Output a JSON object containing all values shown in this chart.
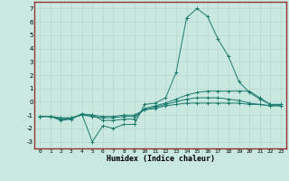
{
  "xlabel": "Humidex (Indice chaleur)",
  "xlim": [
    -0.5,
    23.5
  ],
  "ylim": [
    -3.5,
    7.5
  ],
  "xticks": [
    0,
    1,
    2,
    3,
    4,
    5,
    6,
    7,
    8,
    9,
    10,
    11,
    12,
    13,
    14,
    15,
    16,
    17,
    18,
    19,
    20,
    21,
    22,
    23
  ],
  "yticks": [
    -3,
    -2,
    -1,
    0,
    1,
    2,
    3,
    4,
    5,
    6,
    7
  ],
  "bg_color": "#c8e8e0",
  "grid_color": "#b8d8d0",
  "spine_color": "#993333",
  "line_color": "#1a7a6e",
  "lines": [
    {
      "x": [
        0,
        1,
        2,
        3,
        4,
        5,
        6,
        7,
        8,
        9,
        10,
        11,
        12,
        13,
        14,
        15,
        16,
        17,
        18,
        19,
        20,
        21,
        22,
        23
      ],
      "y": [
        -1.1,
        -1.1,
        -1.4,
        -1.3,
        -0.9,
        -3.0,
        -1.8,
        -2.0,
        -1.7,
        -1.7,
        -0.2,
        -0.1,
        0.3,
        2.2,
        6.3,
        7.0,
        6.4,
        4.7,
        3.4,
        1.5,
        0.7,
        0.2,
        -0.2,
        -0.2
      ]
    },
    {
      "x": [
        0,
        1,
        2,
        3,
        4,
        5,
        6,
        7,
        8,
        9,
        10,
        11,
        12,
        13,
        14,
        15,
        16,
        17,
        18,
        19,
        20,
        21,
        22,
        23
      ],
      "y": [
        -1.1,
        -1.1,
        -1.3,
        -1.3,
        -0.9,
        -1.0,
        -1.4,
        -1.4,
        -1.3,
        -1.3,
        -0.5,
        -0.3,
        -0.1,
        0.2,
        0.5,
        0.7,
        0.8,
        0.8,
        0.8,
        0.8,
        0.8,
        0.3,
        -0.2,
        -0.2
      ]
    },
    {
      "x": [
        0,
        1,
        2,
        3,
        4,
        5,
        6,
        7,
        8,
        9,
        10,
        11,
        12,
        13,
        14,
        15,
        16,
        17,
        18,
        19,
        20,
        21,
        22,
        23
      ],
      "y": [
        -1.1,
        -1.1,
        -1.3,
        -1.2,
        -1.0,
        -1.1,
        -1.2,
        -1.2,
        -1.1,
        -1.1,
        -0.6,
        -0.4,
        -0.2,
        0.0,
        0.2,
        0.3,
        0.3,
        0.3,
        0.2,
        0.1,
        -0.1,
        -0.2,
        -0.3,
        -0.3
      ]
    },
    {
      "x": [
        0,
        1,
        2,
        3,
        4,
        5,
        6,
        7,
        8,
        9,
        10,
        11,
        12,
        13,
        14,
        15,
        16,
        17,
        18,
        19,
        20,
        21,
        22,
        23
      ],
      "y": [
        -1.1,
        -1.1,
        -1.2,
        -1.2,
        -1.0,
        -1.0,
        -1.1,
        -1.1,
        -1.0,
        -1.0,
        -0.6,
        -0.5,
        -0.3,
        -0.2,
        -0.1,
        -0.1,
        -0.1,
        -0.1,
        -0.1,
        -0.1,
        -0.2,
        -0.2,
        -0.3,
        -0.3
      ]
    }
  ]
}
